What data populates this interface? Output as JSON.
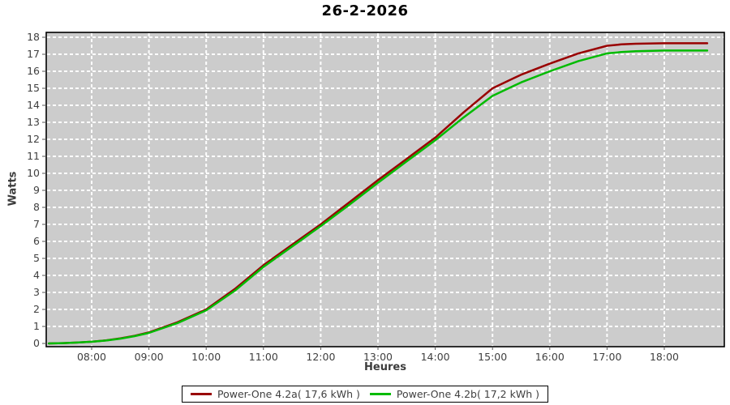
{
  "chart_data": {
    "type": "line",
    "title": "26-2-2026",
    "xlabel": "Heures",
    "ylabel": "Watts",
    "plot_bg": "#cccccc",
    "grid_color": "#ffffff",
    "border_color": "#000000",
    "tick_label_color": "#404040",
    "xlim_hours": [
      7.2,
      19.05
    ],
    "ylim": [
      0,
      18
    ],
    "x_tick_hours": [
      8,
      9,
      10,
      11,
      12,
      13,
      14,
      15,
      16,
      17,
      18
    ],
    "x_tick_labels": [
      "08:00",
      "09:00",
      "10:00",
      "11:00",
      "12:00",
      "13:00",
      "14:00",
      "15:00",
      "16:00",
      "17:00",
      "18:00"
    ],
    "y_tick_values": [
      0,
      1,
      2,
      3,
      4,
      5,
      6,
      7,
      8,
      9,
      10,
      11,
      12,
      13,
      14,
      15,
      16,
      17,
      18
    ],
    "y_tick_labels": [
      "0",
      "1",
      "2",
      "3",
      "4",
      "5",
      "6",
      "7",
      "8",
      "9",
      "10",
      "11",
      "12",
      "13",
      "14",
      "15",
      "16",
      "17",
      "18"
    ],
    "x_hours": [
      7.25,
      7.5,
      7.75,
      8,
      8.25,
      8.5,
      8.75,
      9,
      9.5,
      10,
      10.5,
      11,
      11.5,
      12,
      12.5,
      13,
      13.5,
      14,
      14.5,
      15,
      15.5,
      16,
      16.5,
      17,
      17.25,
      17.5,
      18,
      18.25,
      18.5,
      18.75
    ],
    "series": [
      {
        "name": "Power-One 4.2a( 17,6 kWh )",
        "color": "#990000",
        "total_kwh_label": "17,6 kWh",
        "values": [
          0,
          0.02,
          0.05,
          0.1,
          0.18,
          0.3,
          0.45,
          0.65,
          1.25,
          2.0,
          3.2,
          4.6,
          5.8,
          7.0,
          8.3,
          9.6,
          10.85,
          12.1,
          13.6,
          15.0,
          15.8,
          16.45,
          17.05,
          17.5,
          17.58,
          17.62,
          17.65,
          17.65,
          17.65,
          17.65
        ]
      },
      {
        "name": "Power-One 4.2b( 17,2 kWh )",
        "color": "#00bb00",
        "total_kwh_label": "17,2 kWh",
        "values": [
          0,
          0.02,
          0.05,
          0.1,
          0.17,
          0.28,
          0.43,
          0.62,
          1.2,
          1.95,
          3.1,
          4.5,
          5.7,
          6.9,
          8.15,
          9.45,
          10.7,
          11.95,
          13.3,
          14.55,
          15.35,
          16.0,
          16.6,
          17.05,
          17.13,
          17.18,
          17.22,
          17.22,
          17.22,
          17.22
        ]
      }
    ],
    "legend_position": "bottom-center",
    "grid": true
  }
}
